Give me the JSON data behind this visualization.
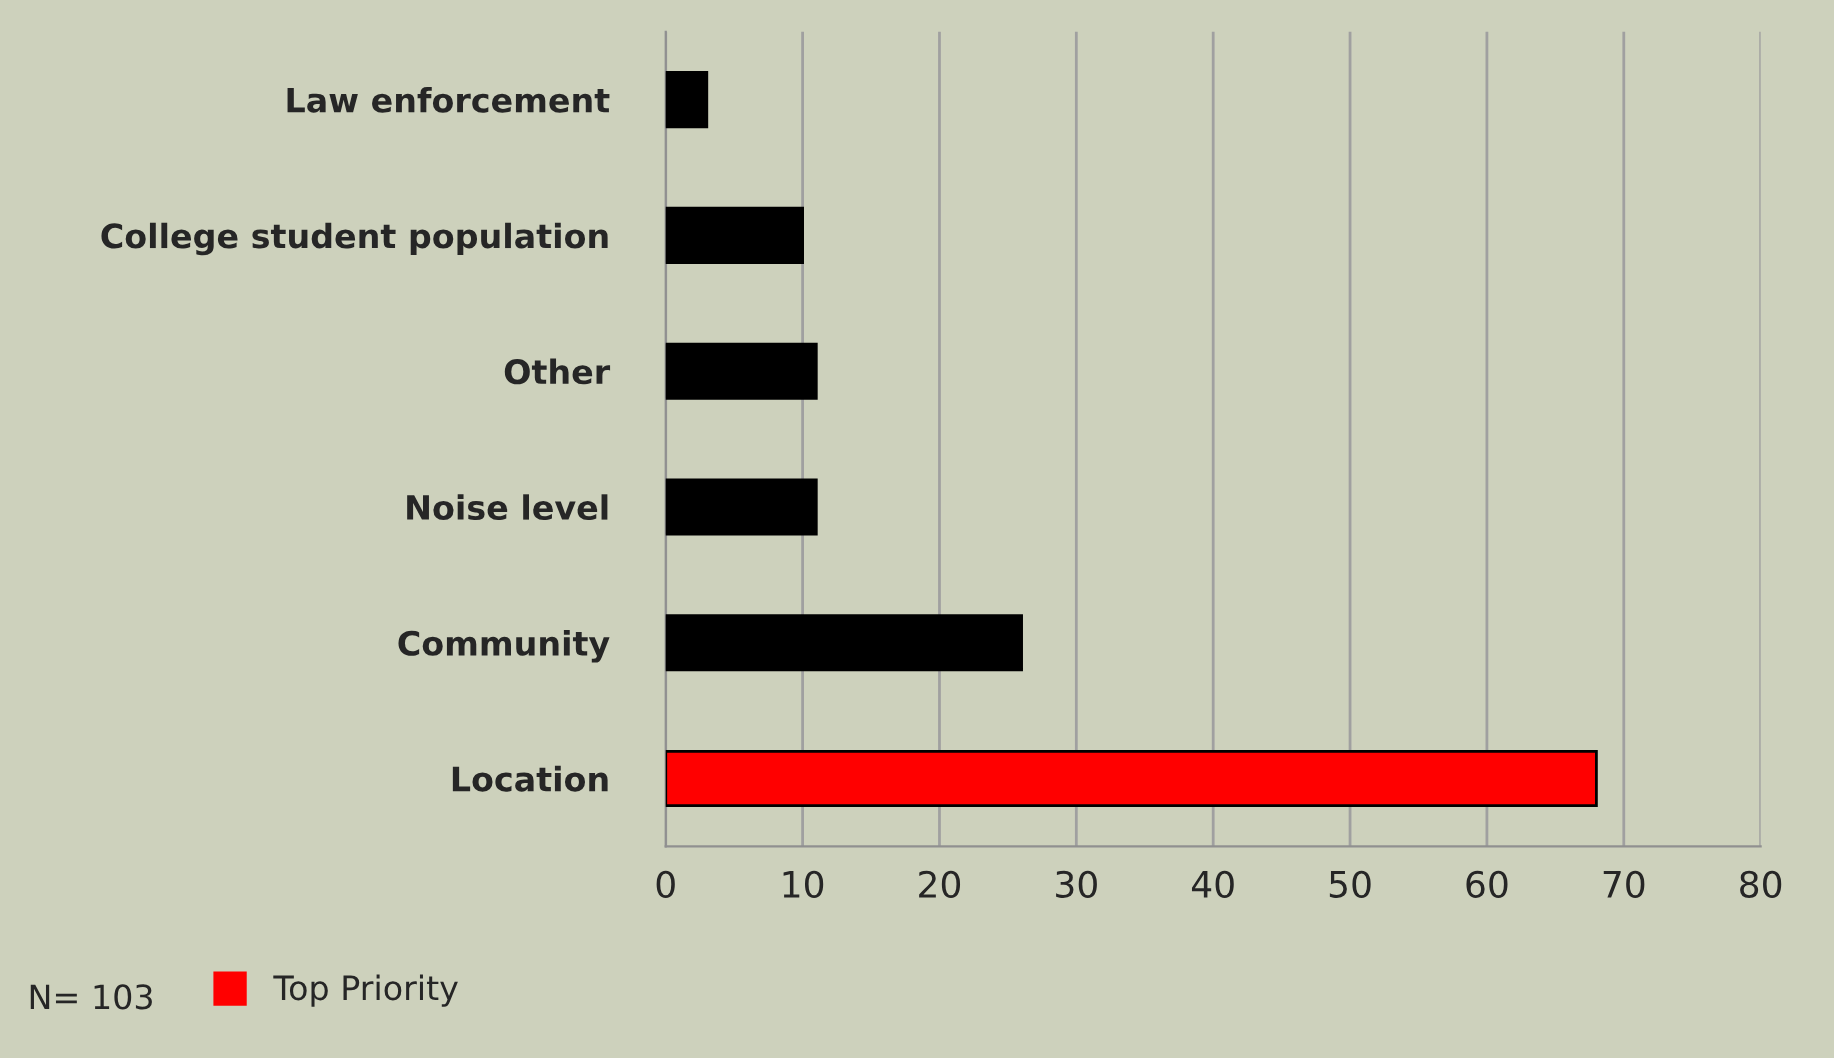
{
  "chart_data": {
    "type": "bar",
    "orientation": "horizontal",
    "categories": [
      "Law enforcement",
      "College student population",
      "Other",
      "Noise level",
      "Community",
      "Location"
    ],
    "series": [
      {
        "color": "#000000",
        "values": [
          3,
          10,
          11,
          11,
          26,
          null
        ]
      },
      {
        "name": "Top Priority",
        "color": "#ff0000",
        "values": [
          null,
          null,
          null,
          null,
          null,
          68
        ]
      }
    ],
    "xlim": [
      0,
      80
    ],
    "xticks": [
      0,
      10,
      20,
      30,
      40,
      50,
      60,
      70,
      80
    ],
    "grid": "x",
    "legend": "bottom left",
    "annotations": [
      "N= 103"
    ]
  }
}
